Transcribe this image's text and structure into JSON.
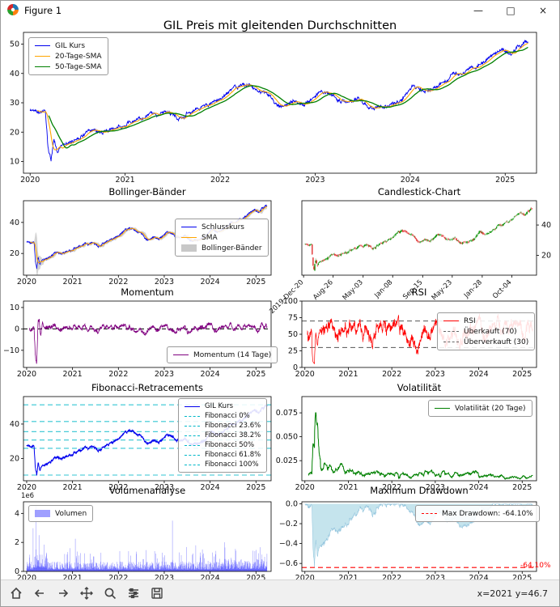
{
  "window": {
    "title": "Figure 1",
    "controls": {
      "minimize": "—",
      "maximize": "□",
      "close": "×"
    }
  },
  "toolbar": {
    "status": "x=2021 y=46.7",
    "items": [
      {
        "name": "home"
      },
      {
        "name": "back"
      },
      {
        "name": "forward"
      },
      {
        "name": "pan"
      },
      {
        "name": "zoom"
      },
      {
        "name": "subplots"
      },
      {
        "name": "save"
      }
    ]
  },
  "seed": 42,
  "x_range": [
    2020.0,
    2025.24
  ],
  "price_anchors": [
    [
      2020.0,
      27.2
    ],
    [
      2020.06,
      27.8
    ],
    [
      2020.12,
      26.8
    ],
    [
      2020.16,
      27.4
    ],
    [
      2020.19,
      14.0
    ],
    [
      2020.22,
      10.3
    ],
    [
      2020.25,
      17.6
    ],
    [
      2020.29,
      13.2
    ],
    [
      2020.33,
      16.2
    ],
    [
      2020.4,
      15.4
    ],
    [
      2020.48,
      17.8
    ],
    [
      2020.58,
      19.8
    ],
    [
      2020.68,
      20.6
    ],
    [
      2020.8,
      20.2
    ],
    [
      2020.92,
      21.6
    ],
    [
      2021.0,
      22.4
    ],
    [
      2021.12,
      23.8
    ],
    [
      2021.25,
      25.4
    ],
    [
      2021.38,
      26.4
    ],
    [
      2021.5,
      26.8
    ],
    [
      2021.58,
      24.6
    ],
    [
      2021.7,
      27.2
    ],
    [
      2021.82,
      28.8
    ],
    [
      2021.92,
      29.6
    ],
    [
      2022.0,
      31.2
    ],
    [
      2022.1,
      33.8
    ],
    [
      2022.2,
      35.8
    ],
    [
      2022.3,
      36.4
    ],
    [
      2022.38,
      34.6
    ],
    [
      2022.48,
      33.2
    ],
    [
      2022.58,
      30.4
    ],
    [
      2022.68,
      28.6
    ],
    [
      2022.78,
      30.6
    ],
    [
      2022.88,
      29.2
    ],
    [
      2022.96,
      31.4
    ],
    [
      2023.04,
      33.6
    ],
    [
      2023.12,
      34.2
    ],
    [
      2023.22,
      31.4
    ],
    [
      2023.34,
      29.8
    ],
    [
      2023.46,
      31.2
    ],
    [
      2023.56,
      29.0
    ],
    [
      2023.66,
      28.4
    ],
    [
      2023.78,
      29.4
    ],
    [
      2023.9,
      30.8
    ],
    [
      2023.98,
      33.0
    ],
    [
      2024.04,
      36.2
    ],
    [
      2024.12,
      34.8
    ],
    [
      2024.22,
      33.6
    ],
    [
      2024.32,
      36.4
    ],
    [
      2024.44,
      39.2
    ],
    [
      2024.56,
      40.8
    ],
    [
      2024.68,
      42.4
    ],
    [
      2024.8,
      44.6
    ],
    [
      2024.9,
      46.8
    ],
    [
      2024.98,
      48.4
    ],
    [
      2025.06,
      46.2
    ],
    [
      2025.14,
      49.6
    ],
    [
      2025.24,
      51.2
    ]
  ],
  "chart_data": [
    {
      "kind": "price",
      "type": "line",
      "title": "GIL Preis mit gleitenden Durchschnitten",
      "xlim": [
        2019.93,
        2025.33
      ],
      "ylim": [
        6,
        54
      ],
      "xticks": [
        2020,
        2021,
        2022,
        2023,
        2024,
        2025
      ],
      "xtick_labels": [
        "2020",
        "2021",
        "2022",
        "2023",
        "2024",
        "2025"
      ],
      "yticks": [
        10,
        20,
        30,
        40,
        50
      ],
      "ytick_labels": [
        "10",
        "20",
        "30",
        "40",
        "50"
      ],
      "series": [
        {
          "name": "GIL Kurs",
          "color": "#0000ee"
        },
        {
          "name": "20-Tage-SMA",
          "color": "#ffa500"
        },
        {
          "name": "50-Tage-SMA",
          "color": "#008000"
        }
      ]
    },
    {
      "kind": "bollinger",
      "type": "line",
      "title": "Bollinger-Bänder",
      "xlim": [
        2019.93,
        2025.33
      ],
      "ylim": [
        6,
        54
      ],
      "xticks": [
        2020,
        2021,
        2022,
        2023,
        2024,
        2025
      ],
      "xtick_labels": [
        "2020",
        "2021",
        "2022",
        "2023",
        "2024",
        "2025"
      ],
      "yticks": [
        20,
        40
      ],
      "ytick_labels": [
        "20",
        "40"
      ],
      "series": [
        {
          "name": "Schlusskurs",
          "color": "#0000ee"
        },
        {
          "name": "SMA",
          "color": "#ffa500"
        },
        {
          "name": "Bollinger-Bänder",
          "color": "#9a9a9a"
        }
      ]
    },
    {
      "kind": "candle",
      "type": "candlestick",
      "title": "Candlestick-Chart",
      "xlim": [
        2019.93,
        2025.33
      ],
      "ylim": [
        7,
        56
      ],
      "yticks": [
        20,
        40
      ],
      "ytick_labels": [
        "20",
        "40"
      ],
      "xlabels": [
        "2019-Dec-20",
        "Aug-26",
        "May-03",
        "Jan-08",
        "Sep-15",
        "May-23",
        "Jan-28",
        "Oct-04"
      ],
      "xlabel_pos": [
        2019.97,
        2020.65,
        2021.34,
        2022.02,
        2022.71,
        2023.39,
        2024.08,
        2024.76
      ],
      "up_color": "#089000",
      "down_color": "#e03030"
    },
    {
      "kind": "momentum",
      "type": "line",
      "title": "Momentum",
      "xlim": [
        2019.93,
        2025.33
      ],
      "ylim": [
        -18,
        13
      ],
      "xticks": [
        2020,
        2021,
        2022,
        2023,
        2024,
        2025
      ],
      "xtick_labels": [
        "2020",
        "2021",
        "2022",
        "2023",
        "2024",
        "2025"
      ],
      "yticks": [
        -10,
        0,
        10
      ],
      "ytick_labels": [
        "−10",
        "0",
        "10"
      ],
      "zero_line": 0,
      "series": [
        {
          "name": "Momentum (14 Tage)",
          "color": "#800080"
        }
      ]
    },
    {
      "kind": "rsi",
      "type": "line",
      "title": "RSI",
      "xlim": [
        2019.93,
        2025.33
      ],
      "ylim": [
        0,
        100
      ],
      "xticks": [
        2020,
        2021,
        2022,
        2023,
        2024,
        2025
      ],
      "xtick_labels": [
        "2020",
        "2021",
        "2022",
        "2023",
        "2024",
        "2025"
      ],
      "yticks": [
        0,
        25,
        50,
        75,
        100
      ],
      "ytick_labels": [
        "0",
        "25",
        "50",
        "75",
        "100"
      ],
      "thresholds": [
        70,
        30
      ],
      "series": [
        {
          "name": "RSI",
          "color": "#ff0000"
        },
        {
          "name": "Überkauft (70)",
          "color": "#666666"
        },
        {
          "name": "Überverkauft (30)",
          "color": "#666666"
        }
      ]
    },
    {
      "kind": "fib",
      "type": "line",
      "title": "Fibonacci-Retracements",
      "xlim": [
        2019.93,
        2025.33
      ],
      "ylim": [
        7,
        56
      ],
      "xticks": [
        2020,
        2021,
        2022,
        2023,
        2024,
        2025
      ],
      "xtick_labels": [
        "2020",
        "2021",
        "2022",
        "2023",
        "2024",
        "2025"
      ],
      "yticks": [
        20,
        40
      ],
      "ytick_labels": [
        "20",
        "40"
      ],
      "line_color": "#0000ee",
      "fib_color": "#00b7c8",
      "legend": [
        "GIL Kurs",
        "Fibonacci 0%",
        "Fibonacci 23.6%",
        "Fibonacci 38.2%",
        "Fibonacci 50%",
        "Fibonacci 61.8%",
        "Fibonacci 100%"
      ],
      "levels": [
        51.2,
        41.5,
        35.6,
        30.7,
        25.9,
        10.3
      ]
    },
    {
      "kind": "volatility",
      "type": "line",
      "title": "Volatilität",
      "xlim": [
        2019.93,
        2025.33
      ],
      "ylim": [
        0.004,
        0.092
      ],
      "xticks": [
        2020,
        2021,
        2022,
        2023,
        2024,
        2025
      ],
      "xtick_labels": [
        "2020",
        "2021",
        "2022",
        "2023",
        "2024",
        "2025"
      ],
      "yticks": [
        0.025,
        0.05,
        0.075
      ],
      "ytick_labels": [
        "0.025",
        "0.050",
        "0.075"
      ],
      "series": [
        {
          "name": "Volatilität (20 Tage)",
          "color": "#008000"
        }
      ]
    },
    {
      "kind": "volume",
      "type": "bar",
      "title": "Volumenanalyse",
      "xlim": [
        2019.93,
        2025.33
      ],
      "ylim": [
        0,
        4.8
      ],
      "xticks": [
        2020,
        2021,
        2022,
        2023,
        2024,
        2025
      ],
      "xtick_labels": [
        "2020",
        "2021",
        "2022",
        "2023",
        "2024",
        "2025"
      ],
      "yticks": [
        0,
        2,
        4
      ],
      "ytick_labels": [
        "0",
        "2",
        "4"
      ],
      "offset_label": "1e6",
      "series": [
        {
          "name": "Volumen",
          "color": "#5050ff"
        }
      ],
      "spikes": [
        [
          2020.2,
          4.55
        ],
        [
          2020.27,
          2.5
        ],
        [
          2020.95,
          1.6
        ],
        [
          2021.06,
          2.25
        ],
        [
          2022.03,
          1.4
        ],
        [
          2023.18,
          3.5
        ],
        [
          2024.05,
          1.3
        ],
        [
          2024.55,
          1.55
        ],
        [
          2025.05,
          1.25
        ]
      ]
    },
    {
      "kind": "drawdown",
      "type": "area",
      "title": "Maximum Drawdown",
      "xlim": [
        2019.93,
        2025.33
      ],
      "ylim": [
        -0.68,
        0.02
      ],
      "xticks": [
        2020,
        2021,
        2022,
        2023,
        2024,
        2025
      ],
      "xtick_labels": [
        "2020",
        "2021",
        "2022",
        "2023",
        "2024",
        "2025"
      ],
      "yticks": [
        0,
        -0.2,
        -0.4,
        -0.6
      ],
      "ytick_labels": [
        "0.0",
        "−0.2",
        "−0.4",
        "−0.6"
      ],
      "fill_color": "#add8e6",
      "max_line": {
        "value": -0.641,
        "color": "#ff0000",
        "label": "Max Drawdown: -64.10%"
      },
      "annotation": "-64.10%"
    }
  ]
}
